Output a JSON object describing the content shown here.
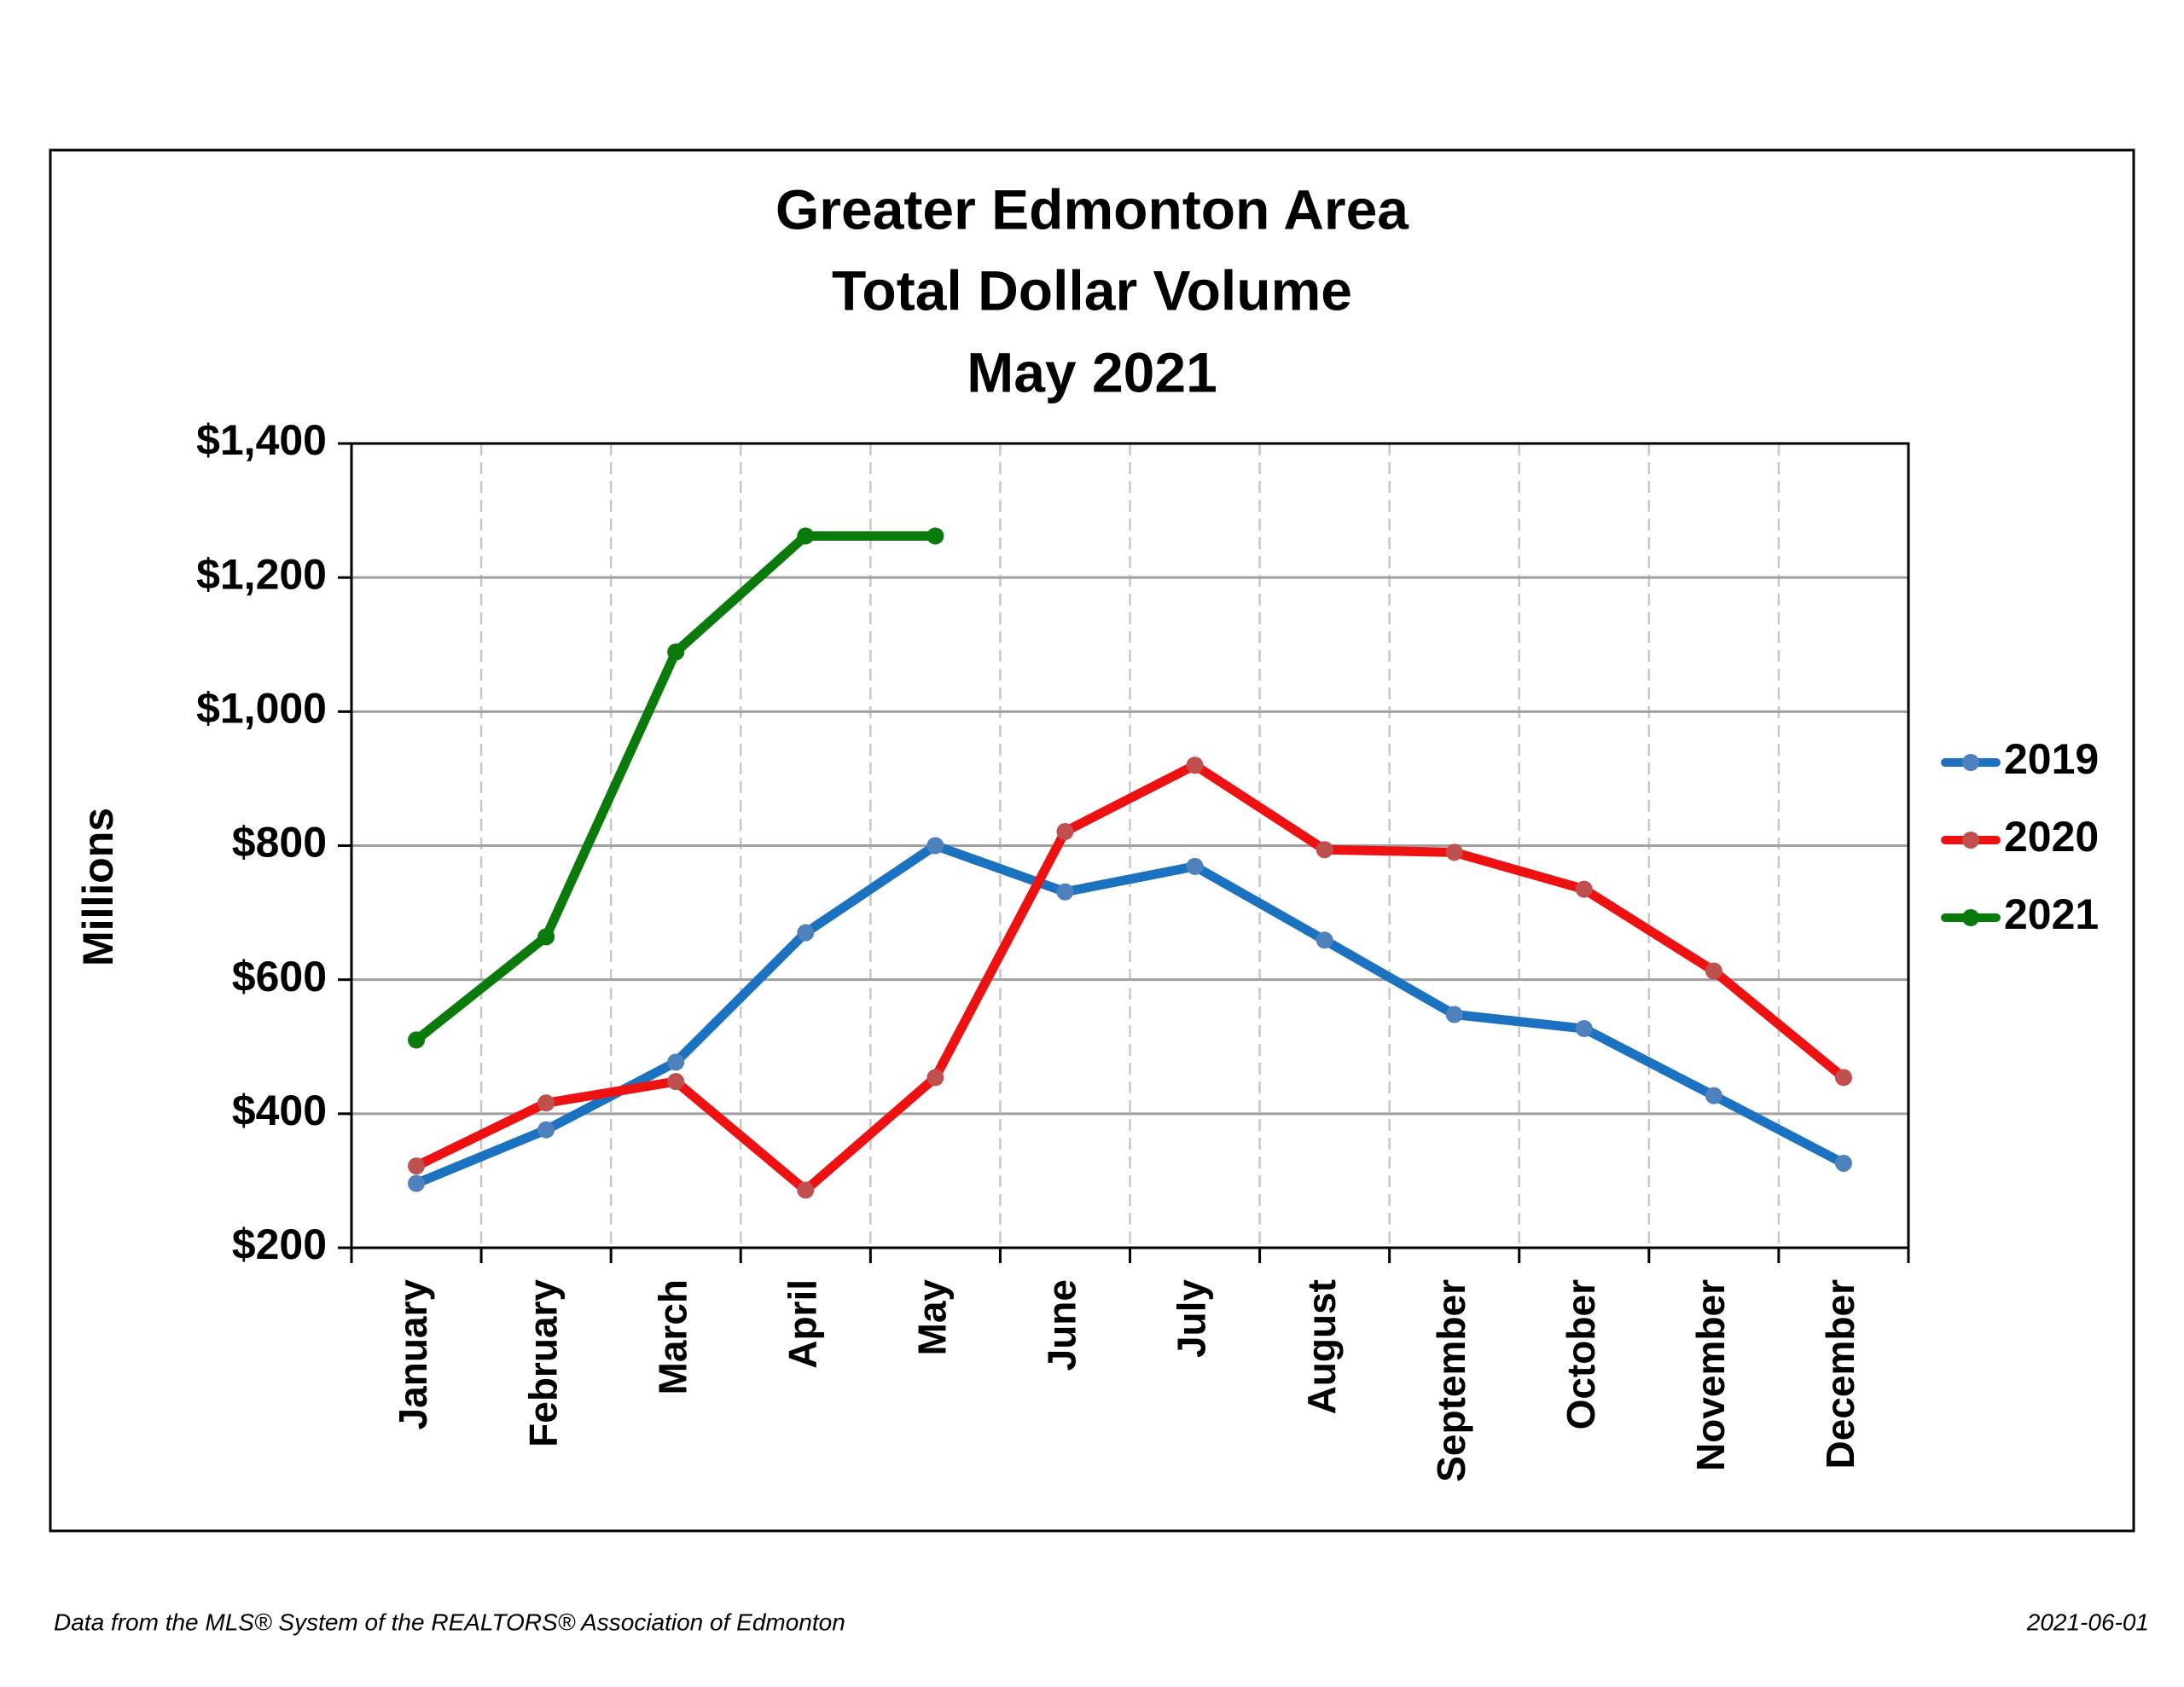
{
  "chart_data": {
    "type": "line",
    "title": [
      "Greater Edmonton Area",
      "Total Dollar Volume",
      "May 2021"
    ],
    "ylabel": "Millions",
    "categories": [
      "January",
      "February",
      "March",
      "April",
      "May",
      "June",
      "July",
      "August",
      "September",
      "October",
      "November",
      "December"
    ],
    "series": [
      {
        "name": "2019",
        "color": "#1a72c0",
        "marker_color": "#4f81bd",
        "values": [
          296,
          376,
          477,
          670,
          800,
          731,
          769,
          659,
          548,
          527,
          427,
          326
        ]
      },
      {
        "name": "2020",
        "color": "#ee1111",
        "marker_color": "#c0504d",
        "values": [
          322,
          416,
          448,
          286,
          454,
          821,
          920,
          794,
          790,
          735,
          613,
          454
        ]
      },
      {
        "name": "2021",
        "color": "#0a7a0a",
        "marker_color": "#0a7a0a",
        "values": [
          510,
          664,
          1089,
          1262,
          1262,
          null,
          null,
          null,
          null,
          null,
          null,
          null
        ]
      }
    ],
    "ylim": [
      200,
      1400
    ],
    "yticks": [
      {
        "value": 200,
        "label": "$200"
      },
      {
        "value": 400,
        "label": "$400"
      },
      {
        "value": 600,
        "label": "$600"
      },
      {
        "value": 800,
        "label": "$800"
      },
      {
        "value": 1000,
        "label": "$1,000"
      },
      {
        "value": 1200,
        "label": "$1,200"
      },
      {
        "value": 1400,
        "label": "$1,400"
      }
    ],
    "grid": true,
    "legend": "right",
    "source": "Data from the MLS® System of the REALTORS® Association of Edmonton",
    "date": "2021-06-01"
  }
}
